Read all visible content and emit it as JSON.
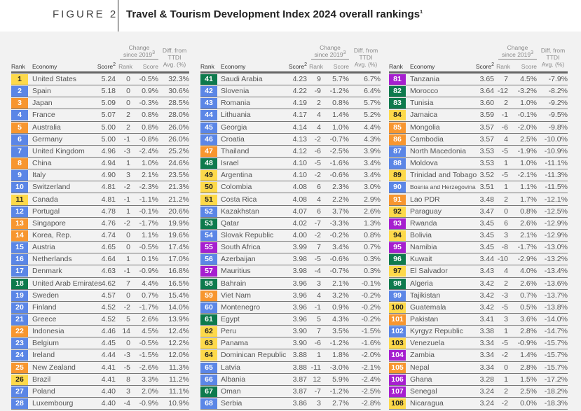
{
  "header": {
    "figure_label": "FIGURE 2",
    "title": "Travel & Tourism Development Index 2024 overall rankings",
    "title_sup": "1"
  },
  "columns_header": {
    "rank": "Rank",
    "economy": "Economy",
    "score": "Score",
    "score_sup": "2",
    "change_line1": "Change",
    "change_line2": "since 2019",
    "change_sup": "3",
    "change_rank": "Rank",
    "change_score": "Score",
    "diff_line1": "Diff. from",
    "diff_line2": "TTDI",
    "diff_line3": "Avg. (%)"
  },
  "region_colors": {
    "americas": "#fdd94a",
    "europe": "#5b86e6",
    "asia_pacific": "#f7962f",
    "mena": "#0e7a4d",
    "ssa": "#a61fcf"
  },
  "tables": [
    [
      [
        "1",
        "United States",
        "5.24",
        "0",
        "-0.5%",
        "32.3%",
        "americas"
      ],
      [
        "2",
        "Spain",
        "5.18",
        "0",
        "0.9%",
        "30.6%",
        "europe"
      ],
      [
        "3",
        "Japan",
        "5.09",
        "0",
        "-0.3%",
        "28.5%",
        "asia_pacific"
      ],
      [
        "4",
        "France",
        "5.07",
        "2",
        "0.8%",
        "28.0%",
        "europe"
      ],
      [
        "5",
        "Australia",
        "5.00",
        "2",
        "0.8%",
        "26.0%",
        "asia_pacific"
      ],
      [
        "6",
        "Germany",
        "5.00",
        "-1",
        "-0.8%",
        "26.0%",
        "europe"
      ],
      [
        "7",
        "United Kingdom",
        "4.96",
        "-3",
        "-2.4%",
        "25.2%",
        "europe"
      ],
      [
        "8",
        "China",
        "4.94",
        "1",
        "1.0%",
        "24.6%",
        "asia_pacific"
      ],
      [
        "9",
        "Italy",
        "4.90",
        "3",
        "2.1%",
        "23.5%",
        "europe"
      ],
      [
        "10",
        "Switzerland",
        "4.81",
        "-2",
        "-2.3%",
        "21.3%",
        "europe"
      ],
      [
        "11",
        "Canada",
        "4.81",
        "-1",
        "-1.1%",
        "21.2%",
        "americas"
      ],
      [
        "12",
        "Portugal",
        "4.78",
        "1",
        "-0.1%",
        "20.6%",
        "europe"
      ],
      [
        "13",
        "Singapore",
        "4.76",
        "-2",
        "-1.7%",
        "19.9%",
        "asia_pacific"
      ],
      [
        "14",
        "Korea, Rep.",
        "4.74",
        "0",
        "1.1%",
        "19.6%",
        "asia_pacific"
      ],
      [
        "15",
        "Austria",
        "4.65",
        "0",
        "-0.5%",
        "17.4%",
        "europe"
      ],
      [
        "16",
        "Netherlands",
        "4.64",
        "1",
        "0.1%",
        "17.0%",
        "europe"
      ],
      [
        "17",
        "Denmark",
        "4.63",
        "-1",
        "-0.9%",
        "16.8%",
        "europe"
      ],
      [
        "18",
        "United Arab Emirates",
        "4.62",
        "7",
        "4.4%",
        "16.5%",
        "mena"
      ],
      [
        "19",
        "Sweden",
        "4.57",
        "0",
        "0.7%",
        "15.4%",
        "europe"
      ],
      [
        "20",
        "Finland",
        "4.52",
        "-2",
        "-1.7%",
        "14.0%",
        "europe"
      ],
      [
        "21",
        "Greece",
        "4.52",
        "5",
        "2.6%",
        "13.9%",
        "europe"
      ],
      [
        "22",
        "Indonesia",
        "4.46",
        "14",
        "4.5%",
        "12.4%",
        "asia_pacific"
      ],
      [
        "23",
        "Belgium",
        "4.45",
        "0",
        "-0.5%",
        "12.2%",
        "europe"
      ],
      [
        "24",
        "Ireland",
        "4.44",
        "-3",
        "-1.5%",
        "12.0%",
        "europe"
      ],
      [
        "25",
        "New Zealand",
        "4.41",
        "-5",
        "-2.6%",
        "11.3%",
        "asia_pacific"
      ],
      [
        "26",
        "Brazil",
        "4.41",
        "8",
        "3.3%",
        "11.2%",
        "americas"
      ],
      [
        "27",
        "Poland",
        "4.40",
        "3",
        "2.0%",
        "11.1%",
        "europe"
      ],
      [
        "28",
        "Luxembourg",
        "4.40",
        "-4",
        "-0.9%",
        "10.9%",
        "europe"
      ]
    ],
    [
      [
        "41",
        "Saudi Arabia",
        "4.23",
        "9",
        "5.7%",
        "6.7%",
        "mena"
      ],
      [
        "42",
        "Slovenia",
        "4.22",
        "-9",
        "-1.2%",
        "6.4%",
        "europe"
      ],
      [
        "43",
        "Romania",
        "4.19",
        "2",
        "0.8%",
        "5.7%",
        "europe"
      ],
      [
        "44",
        "Lithuania",
        "4.17",
        "4",
        "1.4%",
        "5.2%",
        "europe"
      ],
      [
        "45",
        "Georgia",
        "4.14",
        "4",
        "1.0%",
        "4.4%",
        "europe"
      ],
      [
        "46",
        "Croatia",
        "4.13",
        "-2",
        "-0.7%",
        "4.3%",
        "europe"
      ],
      [
        "47",
        "Thailand",
        "4.12",
        "-6",
        "-2.5%",
        "3.9%",
        "asia_pacific"
      ],
      [
        "48",
        "Israel",
        "4.10",
        "-5",
        "-1.6%",
        "3.4%",
        "mena"
      ],
      [
        "49",
        "Argentina",
        "4.10",
        "-2",
        "-0.6%",
        "3.4%",
        "americas"
      ],
      [
        "50",
        "Colombia",
        "4.08",
        "6",
        "2.3%",
        "3.0%",
        "americas"
      ],
      [
        "51",
        "Costa Rica",
        "4.08",
        "4",
        "2.2%",
        "2.9%",
        "americas"
      ],
      [
        "52",
        "Kazakhstan",
        "4.07",
        "6",
        "3.7%",
        "2.6%",
        "europe"
      ],
      [
        "53",
        "Qatar",
        "4.02",
        "-7",
        "-3.3%",
        "1.3%",
        "mena"
      ],
      [
        "54",
        "Slovak Republic",
        "4.00",
        "-2",
        "-0.2%",
        "0.8%",
        "europe"
      ],
      [
        "55",
        "South Africa",
        "3.99",
        "7",
        "3.4%",
        "0.7%",
        "ssa"
      ],
      [
        "56",
        "Azerbaijan",
        "3.98",
        "-5",
        "-0.6%",
        "0.3%",
        "europe"
      ],
      [
        "57",
        "Mauritius",
        "3.98",
        "-4",
        "-0.7%",
        "0.3%",
        "ssa"
      ],
      [
        "58",
        "Bahrain",
        "3.96",
        "3",
        "2.1%",
        "-0.1%",
        "mena"
      ],
      [
        "59",
        "Viet Nam",
        "3.96",
        "4",
        "3.2%",
        "-0.2%",
        "asia_pacific"
      ],
      [
        "60",
        "Montenegro",
        "3.96",
        "-1",
        "0.9%",
        "-0.2%",
        "europe"
      ],
      [
        "61",
        "Egypt",
        "3.96",
        "5",
        "4.3%",
        "-0.2%",
        "mena"
      ],
      [
        "62",
        "Peru",
        "3.90",
        "7",
        "3.5%",
        "-1.5%",
        "americas"
      ],
      [
        "63",
        "Panama",
        "3.90",
        "-6",
        "-1.2%",
        "-1.6%",
        "americas"
      ],
      [
        "64",
        "Dominican Republic",
        "3.88",
        "1",
        "1.8%",
        "-2.0%",
        "americas"
      ],
      [
        "65",
        "Latvia",
        "3.88",
        "-11",
        "-3.0%",
        "-2.1%",
        "europe"
      ],
      [
        "66",
        "Albania",
        "3.87",
        "12",
        "5.9%",
        "-2.4%",
        "europe"
      ],
      [
        "67",
        "Oman",
        "3.87",
        "-7",
        "-1.2%",
        "-2.5%",
        "mena"
      ],
      [
        "68",
        "Serbia",
        "3.86",
        "3",
        "2.7%",
        "-2.8%",
        "europe"
      ]
    ],
    [
      [
        "81",
        "Tanzania",
        "3.65",
        "7",
        "4.5%",
        "-7.9%",
        "ssa"
      ],
      [
        "82",
        "Morocco",
        "3.64",
        "-12",
        "-3.2%",
        "-8.2%",
        "mena"
      ],
      [
        "83",
        "Tunisia",
        "3.60",
        "2",
        "1.0%",
        "-9.2%",
        "mena"
      ],
      [
        "84",
        "Jamaica",
        "3.59",
        "-1",
        "-0.1%",
        "-9.5%",
        "americas"
      ],
      [
        "85",
        "Mongolia",
        "3.57",
        "-6",
        "-2.0%",
        "-9.8%",
        "asia_pacific"
      ],
      [
        "86",
        "Cambodia",
        "3.57",
        "4",
        "2.5%",
        "-10.0%",
        "asia_pacific"
      ],
      [
        "87",
        "North Macedonia",
        "3.53",
        "-5",
        "-1.9%",
        "-10.9%",
        "europe"
      ],
      [
        "88",
        "Moldova",
        "3.53",
        "1",
        "1.0%",
        "-11.1%",
        "europe"
      ],
      [
        "89",
        "Trinidad and Tobago",
        "3.52",
        "-5",
        "-2.1%",
        "-11.3%",
        "americas"
      ],
      [
        "90",
        "Bosnia and Herzegovina",
        "3.51",
        "1",
        "1.1%",
        "-11.5%",
        "europe"
      ],
      [
        "91",
        "Lao PDR",
        "3.48",
        "2",
        "1.7%",
        "-12.1%",
        "asia_pacific"
      ],
      [
        "92",
        "Paraguay",
        "3.47",
        "0",
        "0.8%",
        "-12.5%",
        "americas"
      ],
      [
        "93",
        "Rwanda",
        "3.45",
        "6",
        "2.6%",
        "-12.9%",
        "ssa"
      ],
      [
        "94",
        "Bolivia",
        "3.45",
        "3",
        "2.1%",
        "-12.9%",
        "americas"
      ],
      [
        "95",
        "Namibia",
        "3.45",
        "-8",
        "-1.7%",
        "-13.0%",
        "ssa"
      ],
      [
        "96",
        "Kuwait",
        "3.44",
        "-10",
        "-2.9%",
        "-13.2%",
        "mena"
      ],
      [
        "97",
        "El Salvador",
        "3.43",
        "4",
        "4.0%",
        "-13.4%",
        "americas"
      ],
      [
        "98",
        "Algeria",
        "3.42",
        "2",
        "2.6%",
        "-13.6%",
        "mena"
      ],
      [
        "99",
        "Tajikistan",
        "3.42",
        "-3",
        "0.7%",
        "-13.7%",
        "europe"
      ],
      [
        "100",
        "Guatemala",
        "3.42",
        "-5",
        "0.5%",
        "-13.8%",
        "americas"
      ],
      [
        "101",
        "Pakistan",
        "3.41",
        "3",
        "3.6%",
        "-14.0%",
        "asia_pacific"
      ],
      [
        "102",
        "Kyrgyz Republic",
        "3.38",
        "1",
        "2.8%",
        "-14.7%",
        "europe"
      ],
      [
        "103",
        "Venezuela",
        "3.34",
        "-5",
        "-0.9%",
        "-15.7%",
        "americas"
      ],
      [
        "104",
        "Zambia",
        "3.34",
        "-2",
        "1.4%",
        "-15.7%",
        "ssa"
      ],
      [
        "105",
        "Nepal",
        "3.34",
        "0",
        "2.8%",
        "-15.7%",
        "asia_pacific"
      ],
      [
        "106",
        "Ghana",
        "3.28",
        "1",
        "1.5%",
        "-17.2%",
        "ssa"
      ],
      [
        "107",
        "Senegal",
        "3.24",
        "2",
        "2.5%",
        "-18.2%",
        "ssa"
      ],
      [
        "108",
        "Nicaragua",
        "3.24",
        "-2",
        "0.0%",
        "-18.3%",
        "americas"
      ]
    ]
  ]
}
